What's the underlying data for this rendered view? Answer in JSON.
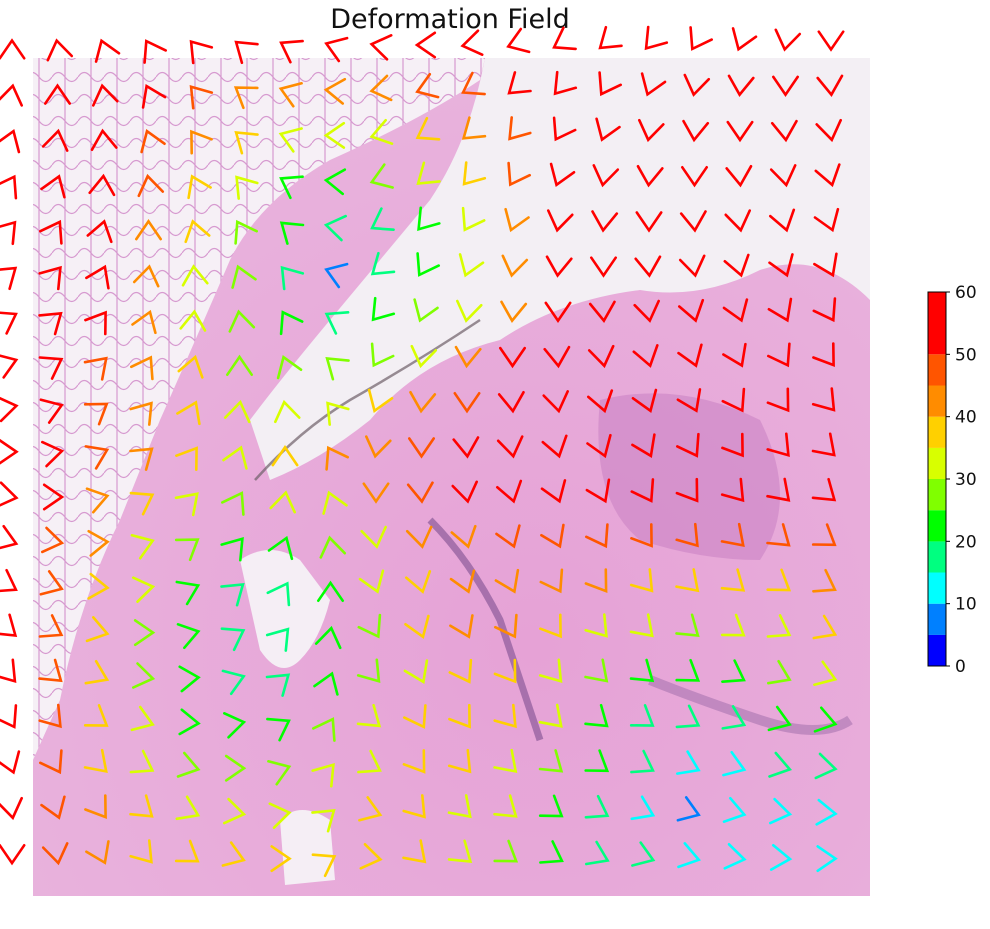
{
  "chart_data": {
    "type": "quiver",
    "title": "Deformation Field",
    "xlabel": "",
    "ylabel": "",
    "grid": false,
    "background": "H&E stained tissue section",
    "glyph": "chevron",
    "field_grid": {
      "cols": 19,
      "rows": 19
    },
    "colorbar": {
      "min": 0,
      "max": 60,
      "ticks": [
        0,
        10,
        20,
        30,
        40,
        50,
        60
      ],
      "bins": [
        {
          "from": 0,
          "to": 5,
          "color": "#0000ff"
        },
        {
          "from": 5,
          "to": 10,
          "color": "#0080ff"
        },
        {
          "from": 10,
          "to": 15,
          "color": "#00ffff"
        },
        {
          "from": 15,
          "to": 20,
          "color": "#00ff80"
        },
        {
          "from": 20,
          "to": 25,
          "color": "#00ff00"
        },
        {
          "from": 25,
          "to": 30,
          "color": "#80ff00"
        },
        {
          "from": 30,
          "to": 35,
          "color": "#d8ff00"
        },
        {
          "from": 35,
          "to": 40,
          "color": "#ffd000"
        },
        {
          "from": 40,
          "to": 45,
          "color": "#ff8c00"
        },
        {
          "from": 45,
          "to": 50,
          "color": "#ff5500"
        },
        {
          "from": 50,
          "to": 60,
          "color": "#ff0000"
        }
      ],
      "placement": "right"
    },
    "magnitude_rows": [
      [
        58,
        58,
        57,
        56,
        55,
        54,
        53,
        52,
        52,
        53,
        55,
        56,
        57,
        58,
        58,
        59,
        59,
        59,
        60
      ],
      [
        58,
        57,
        55,
        52,
        48,
        44,
        40,
        40,
        42,
        46,
        49,
        52,
        55,
        57,
        58,
        59,
        59,
        59,
        60
      ],
      [
        58,
        57,
        53,
        48,
        42,
        38,
        34,
        32,
        34,
        38,
        44,
        49,
        53,
        56,
        58,
        59,
        59,
        59,
        60
      ],
      [
        58,
        56,
        52,
        46,
        38,
        30,
        24,
        22,
        26,
        30,
        38,
        46,
        52,
        55,
        58,
        59,
        59,
        59,
        60
      ],
      [
        58,
        56,
        51,
        44,
        36,
        28,
        20,
        16,
        18,
        24,
        34,
        44,
        52,
        55,
        58,
        59,
        59,
        60,
        60
      ],
      [
        58,
        55,
        50,
        43,
        34,
        26,
        18,
        9,
        16,
        24,
        32,
        42,
        50,
        55,
        58,
        58,
        59,
        60,
        60
      ],
      [
        57,
        55,
        50,
        42,
        34,
        26,
        22,
        18,
        20,
        26,
        34,
        44,
        52,
        56,
        58,
        58,
        59,
        60,
        60
      ],
      [
        57,
        54,
        49,
        42,
        36,
        28,
        26,
        26,
        28,
        32,
        40,
        50,
        55,
        57,
        58,
        58,
        58,
        59,
        59
      ],
      [
        57,
        54,
        48,
        42,
        38,
        32,
        30,
        34,
        38,
        40,
        46,
        52,
        56,
        57,
        58,
        58,
        58,
        58,
        58
      ],
      [
        57,
        52,
        46,
        40,
        36,
        34,
        36,
        40,
        42,
        45,
        50,
        54,
        56,
        57,
        57,
        57,
        57,
        56,
        56
      ],
      [
        56,
        50,
        44,
        38,
        32,
        28,
        30,
        34,
        40,
        45,
        50,
        53,
        54,
        55,
        55,
        54,
        53,
        52,
        52
      ],
      [
        56,
        48,
        42,
        34,
        26,
        20,
        22,
        26,
        34,
        40,
        44,
        47,
        48,
        48,
        47,
        46,
        45,
        45,
        46
      ],
      [
        55,
        46,
        38,
        30,
        22,
        18,
        18,
        22,
        30,
        36,
        40,
        42,
        42,
        40,
        38,
        36,
        36,
        38,
        40
      ],
      [
        54,
        45,
        36,
        28,
        20,
        16,
        16,
        20,
        28,
        36,
        40,
        40,
        38,
        34,
        30,
        28,
        30,
        34,
        36
      ],
      [
        53,
        45,
        36,
        28,
        22,
        18,
        18,
        22,
        28,
        34,
        38,
        38,
        34,
        28,
        24,
        22,
        24,
        28,
        30
      ],
      [
        52,
        45,
        37,
        30,
        24,
        22,
        22,
        26,
        32,
        36,
        38,
        36,
        30,
        24,
        18,
        16,
        18,
        20,
        24
      ],
      [
        52,
        46,
        38,
        32,
        28,
        26,
        28,
        30,
        34,
        36,
        36,
        32,
        26,
        20,
        16,
        14,
        14,
        16,
        16
      ],
      [
        52,
        47,
        40,
        36,
        32,
        30,
        32,
        34,
        36,
        36,
        34,
        30,
        24,
        18,
        14,
        9,
        14,
        14,
        14
      ],
      [
        53,
        48,
        42,
        38,
        36,
        36,
        36,
        38,
        38,
        36,
        32,
        26,
        22,
        18,
        16,
        14,
        14,
        14,
        14
      ]
    ],
    "angle_rows": [
      [
        -90,
        -100,
        -110,
        -120,
        -130,
        -140,
        -150,
        -160,
        -170,
        180,
        170,
        160,
        150,
        140,
        130,
        120,
        110,
        100,
        90
      ],
      [
        -80,
        -90,
        -100,
        -115,
        -130,
        -145,
        -160,
        -175,
        170,
        160,
        150,
        140,
        130,
        120,
        110,
        100,
        95,
        90,
        85
      ],
      [
        -70,
        -80,
        -95,
        -110,
        -125,
        -140,
        -160,
        180,
        165,
        150,
        140,
        130,
        120,
        110,
        100,
        95,
        90,
        85,
        80
      ],
      [
        -60,
        -70,
        -85,
        -100,
        -115,
        -130,
        -150,
        -175,
        160,
        140,
        130,
        120,
        110,
        100,
        95,
        90,
        85,
        80,
        75
      ],
      [
        -50,
        -60,
        -75,
        -90,
        -105,
        -120,
        -140,
        -170,
        150,
        130,
        120,
        110,
        100,
        95,
        90,
        85,
        80,
        75,
        70
      ],
      [
        -40,
        -50,
        -65,
        -80,
        -95,
        -110,
        -130,
        -160,
        140,
        120,
        110,
        100,
        95,
        90,
        85,
        80,
        75,
        70,
        65
      ],
      [
        -30,
        -40,
        -55,
        -70,
        -85,
        -100,
        -120,
        -150,
        130,
        110,
        100,
        95,
        90,
        85,
        80,
        75,
        70,
        65,
        60
      ],
      [
        -20,
        -30,
        -45,
        -60,
        -75,
        -90,
        -110,
        -140,
        120,
        100,
        95,
        90,
        85,
        80,
        75,
        70,
        65,
        60,
        55
      ],
      [
        -10,
        -20,
        -35,
        -50,
        -65,
        -80,
        -100,
        -130,
        110,
        95,
        90,
        85,
        80,
        75,
        70,
        65,
        60,
        55,
        50
      ],
      [
        0,
        -10,
        -25,
        -40,
        -55,
        -70,
        -90,
        -120,
        100,
        90,
        85,
        80,
        75,
        70,
        65,
        60,
        55,
        50,
        45
      ],
      [
        10,
        0,
        -15,
        -30,
        -45,
        -60,
        -80,
        -110,
        90,
        85,
        80,
        75,
        70,
        65,
        60,
        55,
        50,
        45,
        40
      ],
      [
        20,
        10,
        -5,
        -20,
        -35,
        -50,
        -70,
        -100,
        80,
        80,
        75,
        70,
        65,
        60,
        55,
        50,
        45,
        40,
        35
      ],
      [
        30,
        20,
        5,
        -10,
        -25,
        -40,
        -60,
        -90,
        70,
        75,
        70,
        65,
        60,
        55,
        50,
        45,
        40,
        35,
        30
      ],
      [
        40,
        30,
        15,
        0,
        -15,
        -30,
        -50,
        -80,
        60,
        70,
        65,
        60,
        55,
        50,
        45,
        40,
        35,
        30,
        25
      ],
      [
        50,
        40,
        25,
        10,
        -5,
        -20,
        -40,
        -70,
        50,
        65,
        60,
        55,
        50,
        45,
        40,
        35,
        30,
        25,
        20
      ],
      [
        60,
        50,
        35,
        20,
        5,
        -10,
        -30,
        -60,
        40,
        60,
        55,
        50,
        45,
        40,
        35,
        30,
        25,
        20,
        15
      ],
      [
        70,
        60,
        45,
        30,
        15,
        0,
        -20,
        -50,
        30,
        55,
        50,
        45,
        40,
        35,
        30,
        25,
        20,
        15,
        10
      ],
      [
        80,
        70,
        55,
        40,
        25,
        10,
        -10,
        -40,
        20,
        50,
        45,
        40,
        35,
        30,
        25,
        20,
        15,
        10,
        5
      ],
      [
        90,
        80,
        65,
        50,
        35,
        20,
        0,
        -30,
        10,
        45,
        40,
        35,
        30,
        25,
        20,
        15,
        10,
        5,
        0
      ]
    ]
  }
}
